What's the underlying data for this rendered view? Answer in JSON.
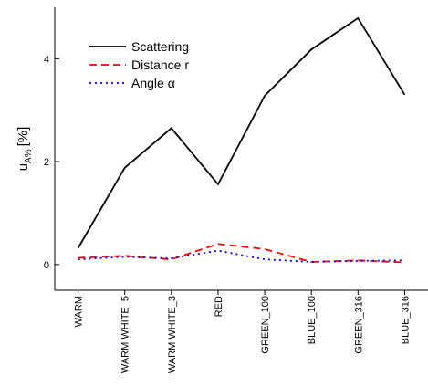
{
  "chart_data": {
    "type": "line",
    "ylabel": {
      "main": "u",
      "sub": "A%",
      "unit": "[%]"
    },
    "categories": [
      "WARM",
      "WARM WHITE_5",
      "WARM WHITE_3",
      "RED",
      "GREEN_100",
      "BLUE_100",
      "GREEN_316",
      "BLUE_316"
    ],
    "series": [
      {
        "name": "Scattering",
        "color": "#000000",
        "dash": "solid",
        "values": [
          0.32,
          1.88,
          2.65,
          1.56,
          3.28,
          4.18,
          4.79,
          3.3
        ]
      },
      {
        "name": "Distance r",
        "color": "#ff0000",
        "dash": "dashed",
        "values": [
          0.13,
          0.17,
          0.1,
          0.4,
          0.3,
          0.05,
          0.08,
          0.04
        ]
      },
      {
        "name": "Angle α",
        "color": "#0000ff",
        "dash": "dotted",
        "values": [
          0.1,
          0.15,
          0.12,
          0.27,
          0.1,
          0.05,
          0.07,
          0.08
        ]
      }
    ],
    "ylim": [
      -0.5,
      5
    ],
    "yticks": [
      0,
      2,
      4
    ],
    "legend": "upper left"
  }
}
